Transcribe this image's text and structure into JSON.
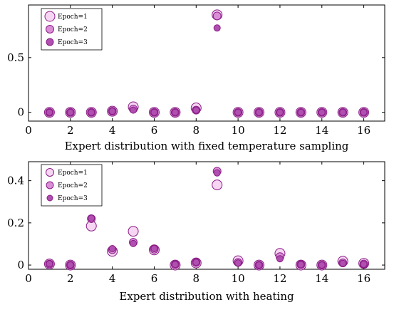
{
  "colors": {
    "epoch1_fill": "#f6d6f2",
    "epoch2_fill": "#d98ed6",
    "epoch3_fill": "#b04fb0",
    "stroke": "#8a1c86",
    "frame": "#000000"
  },
  "chart_data": [
    {
      "type": "scatter",
      "xlabel": "Expert distribution with fixed temperature sampling",
      "ylabel": "",
      "xlim": [
        0,
        17
      ],
      "ylim": [
        -0.08,
        0.98
      ],
      "x_ticks": [
        0,
        2,
        4,
        6,
        8,
        10,
        12,
        14,
        16
      ],
      "x_tick_labels": [
        "0",
        "2",
        "4",
        "6",
        "8",
        "10",
        "12",
        "14",
        "16"
      ],
      "y_ticks": [
        0,
        0.5
      ],
      "y_tick_labels": [
        "0",
        "0.5"
      ],
      "grid": false,
      "legend_position": "top-left",
      "series": [
        {
          "name": "Epoch=1",
          "x": [
            1,
            2,
            3,
            4,
            5,
            6,
            7,
            8,
            9,
            10,
            11,
            12,
            13,
            14,
            15,
            16
          ],
          "y": [
            0.0,
            0.0,
            0.0,
            0.01,
            0.05,
            0.0,
            0.0,
            0.04,
            0.89,
            0.0,
            0.0,
            0.0,
            0.0,
            0.0,
            0.0,
            0.0
          ]
        },
        {
          "name": "Epoch=2",
          "x": [
            1,
            2,
            3,
            4,
            5,
            6,
            7,
            8,
            9,
            10,
            11,
            12,
            13,
            14,
            15,
            16
          ],
          "y": [
            0.0,
            0.0,
            0.0,
            0.01,
            0.03,
            0.0,
            0.0,
            0.02,
            0.88,
            0.0,
            0.0,
            0.0,
            0.0,
            0.0,
            0.0,
            0.0
          ]
        },
        {
          "name": "Epoch=3",
          "x": [
            1,
            2,
            3,
            4,
            5,
            6,
            7,
            8,
            9,
            10,
            11,
            12,
            13,
            14,
            15,
            16
          ],
          "y": [
            0.0,
            0.0,
            0.0,
            0.01,
            0.02,
            0.0,
            0.0,
            0.02,
            0.77,
            0.0,
            0.0,
            0.0,
            0.0,
            0.0,
            0.0,
            0.0
          ]
        }
      ]
    },
    {
      "type": "scatter",
      "xlabel": "Expert distribution with heating",
      "ylabel": "",
      "xlim": [
        0,
        17
      ],
      "ylim": [
        -0.02,
        0.49
      ],
      "x_ticks": [
        0,
        2,
        4,
        6,
        8,
        10,
        12,
        14,
        16
      ],
      "x_tick_labels": [
        "0",
        "2",
        "4",
        "6",
        "8",
        "10",
        "12",
        "14",
        "16"
      ],
      "y_ticks": [
        0,
        0.2,
        0.4
      ],
      "y_tick_labels": [
        "0",
        "0.2",
        "0.4"
      ],
      "grid": false,
      "legend_position": "top-left",
      "series": [
        {
          "name": "Epoch=1",
          "x": [
            1,
            2,
            3,
            4,
            5,
            6,
            7,
            8,
            9,
            10,
            11,
            12,
            13,
            14,
            15,
            16
          ],
          "y": [
            0.005,
            0.0,
            0.185,
            0.065,
            0.16,
            0.072,
            0.0,
            0.01,
            0.38,
            0.02,
            0.0,
            0.055,
            0.0,
            0.0,
            0.018,
            0.008
          ]
        },
        {
          "name": "Epoch=2",
          "x": [
            1,
            2,
            3,
            4,
            5,
            6,
            7,
            8,
            9,
            10,
            11,
            12,
            13,
            14,
            15,
            16
          ],
          "y": [
            0.005,
            0.0,
            0.22,
            0.073,
            0.108,
            0.075,
            0.002,
            0.012,
            0.445,
            0.012,
            0.0,
            0.04,
            0.002,
            0.0,
            0.01,
            0.005
          ]
        },
        {
          "name": "Epoch=3",
          "x": [
            1,
            2,
            3,
            4,
            5,
            6,
            7,
            8,
            9,
            10,
            11,
            12,
            13,
            14,
            15,
            16
          ],
          "y": [
            0.006,
            0.0,
            0.222,
            0.078,
            0.102,
            0.078,
            0.003,
            0.013,
            0.437,
            0.01,
            0.0,
            0.03,
            0.002,
            0.0,
            0.008,
            0.004
          ]
        }
      ]
    }
  ]
}
